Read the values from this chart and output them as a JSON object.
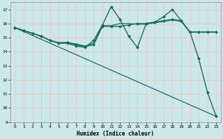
{
  "title": "",
  "xlabel": "Humidex (Indice chaleur)",
  "xlim": [
    -0.5,
    23.5
  ],
  "ylim": [
    9,
    17.5
  ],
  "yticks": [
    9,
    10,
    11,
    12,
    13,
    14,
    15,
    16,
    17
  ],
  "xticks": [
    0,
    1,
    2,
    3,
    4,
    5,
    6,
    7,
    8,
    9,
    10,
    11,
    12,
    13,
    14,
    15,
    16,
    17,
    18,
    19,
    20,
    21,
    22,
    23
  ],
  "background_color": "#cce8e8",
  "grid_color": "#e8c8c8",
  "line_color": "#1a6b5a",
  "lines": [
    {
      "x": [
        0,
        1,
        2,
        3,
        4,
        5,
        6,
        7,
        8,
        9,
        10,
        11,
        12,
        13,
        14,
        15,
        16,
        17,
        18,
        19,
        20,
        21,
        22,
        23
      ],
      "y": [
        15.7,
        15.5,
        15.3,
        15.1,
        14.8,
        14.6,
        14.6,
        14.4,
        14.3,
        14.8,
        15.9,
        17.2,
        16.3,
        15.1,
        14.3,
        16.0,
        16.1,
        16.5,
        17.0,
        16.2,
        15.4,
        13.5,
        11.1,
        9.4
      ],
      "marker": "D",
      "markersize": 2.0,
      "linewidth": 1.0
    },
    {
      "x": [
        0,
        1,
        2,
        3,
        4,
        5,
        6,
        7,
        8,
        9,
        10,
        11,
        12,
        13,
        14,
        15,
        16,
        17,
        18,
        19,
        20,
        21,
        22,
        23
      ],
      "y": [
        15.7,
        15.5,
        15.3,
        15.1,
        14.8,
        14.6,
        14.65,
        14.5,
        14.35,
        14.5,
        15.8,
        15.8,
        15.8,
        15.9,
        16.0,
        16.0,
        16.1,
        16.2,
        16.3,
        16.2,
        15.4,
        15.4,
        15.4,
        15.4
      ],
      "marker": "D",
      "markersize": 2.0,
      "linewidth": 1.0
    },
    {
      "x": [
        0,
        1,
        2,
        3,
        4,
        5,
        6,
        7,
        8,
        9,
        10,
        11,
        12,
        13,
        14,
        15,
        16,
        17,
        18,
        19,
        20,
        21,
        22,
        23
      ],
      "y": [
        15.7,
        15.5,
        15.3,
        15.1,
        14.8,
        14.65,
        14.65,
        14.55,
        14.4,
        14.6,
        15.85,
        15.85,
        16.0,
        16.0,
        15.95,
        15.95,
        16.05,
        16.15,
        16.25,
        16.15,
        15.38,
        15.38,
        15.38,
        15.38
      ],
      "marker": null,
      "markersize": 0,
      "linewidth": 0.9
    },
    {
      "x": [
        0,
        23
      ],
      "y": [
        15.7,
        9.4
      ],
      "marker": null,
      "markersize": 0,
      "linewidth": 0.9
    }
  ]
}
